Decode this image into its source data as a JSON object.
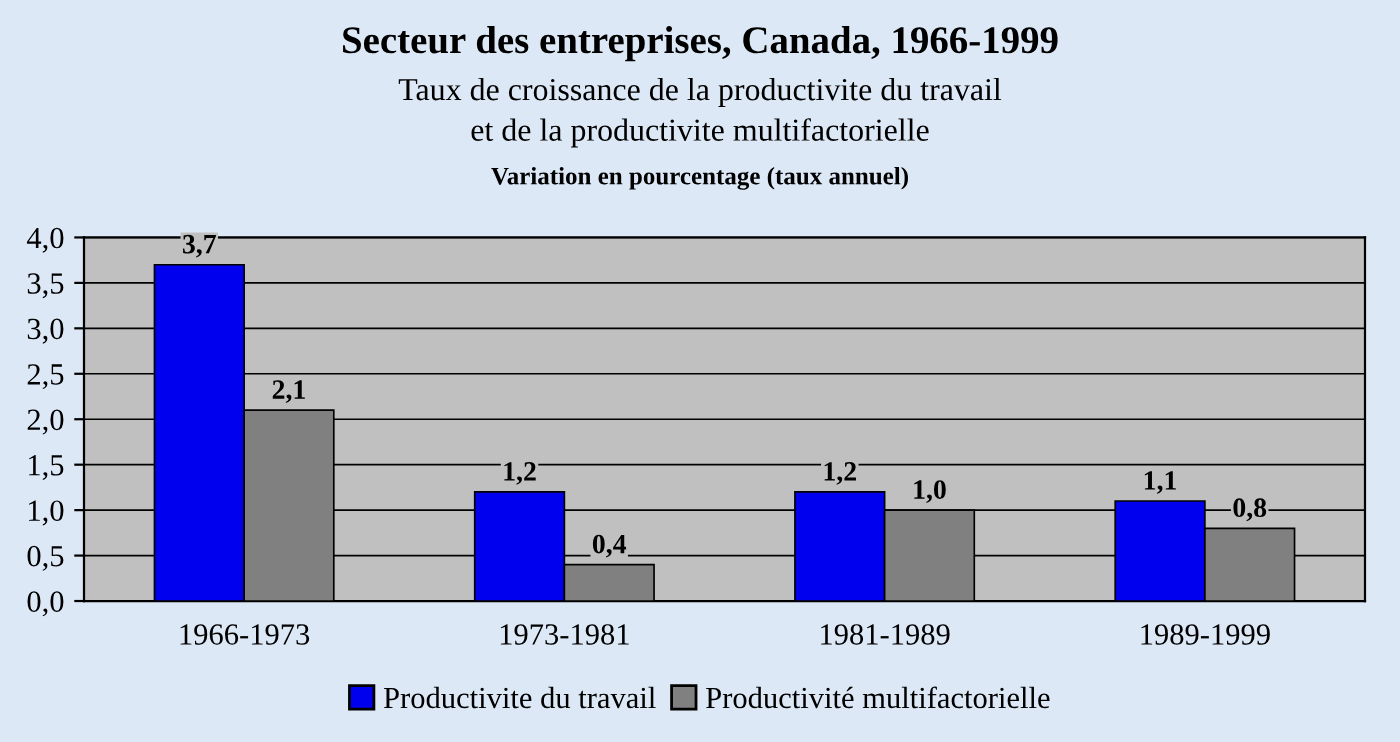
{
  "chart_data": {
    "type": "bar",
    "title": "Secteur des entreprises, Canada, 1966-1999",
    "subtitle": "Taux de croissance de la productivite du travail\net de la productivite multifactorielle",
    "annotations": [
      "Variation en pourcentage (taux annuel)"
    ],
    "categories": [
      "1966-1973",
      "1973-1981",
      "1981-1989",
      "1989-1999"
    ],
    "series": [
      {
        "name": "Productivite du travail",
        "color": "#0000ee",
        "values": [
          3.7,
          1.2,
          1.2,
          1.1
        ],
        "value_labels": [
          "3,7",
          "1,2",
          "1,2",
          "1,1"
        ]
      },
      {
        "name": "Productivité multifactorielle",
        "color": "#808080",
        "values": [
          2.1,
          0.4,
          1.0,
          0.8
        ],
        "value_labels": [
          "2,1",
          "0,4",
          "1,0",
          "0,8"
        ]
      }
    ],
    "ylim": [
      0,
      4
    ],
    "yticks": [
      {
        "value": 0,
        "label": "0,0"
      },
      {
        "value": 0.5,
        "label": "0,5"
      },
      {
        "value": 1,
        "label": "1,0"
      },
      {
        "value": 1.5,
        "label": "1,5"
      },
      {
        "value": 2,
        "label": "2,0"
      },
      {
        "value": 2.5,
        "label": "2,5"
      },
      {
        "value": 3,
        "label": "3,0"
      },
      {
        "value": 3.5,
        "label": "3,5"
      },
      {
        "value": 4,
        "label": "4,0"
      }
    ],
    "grid": "y",
    "legend": "bottom"
  }
}
